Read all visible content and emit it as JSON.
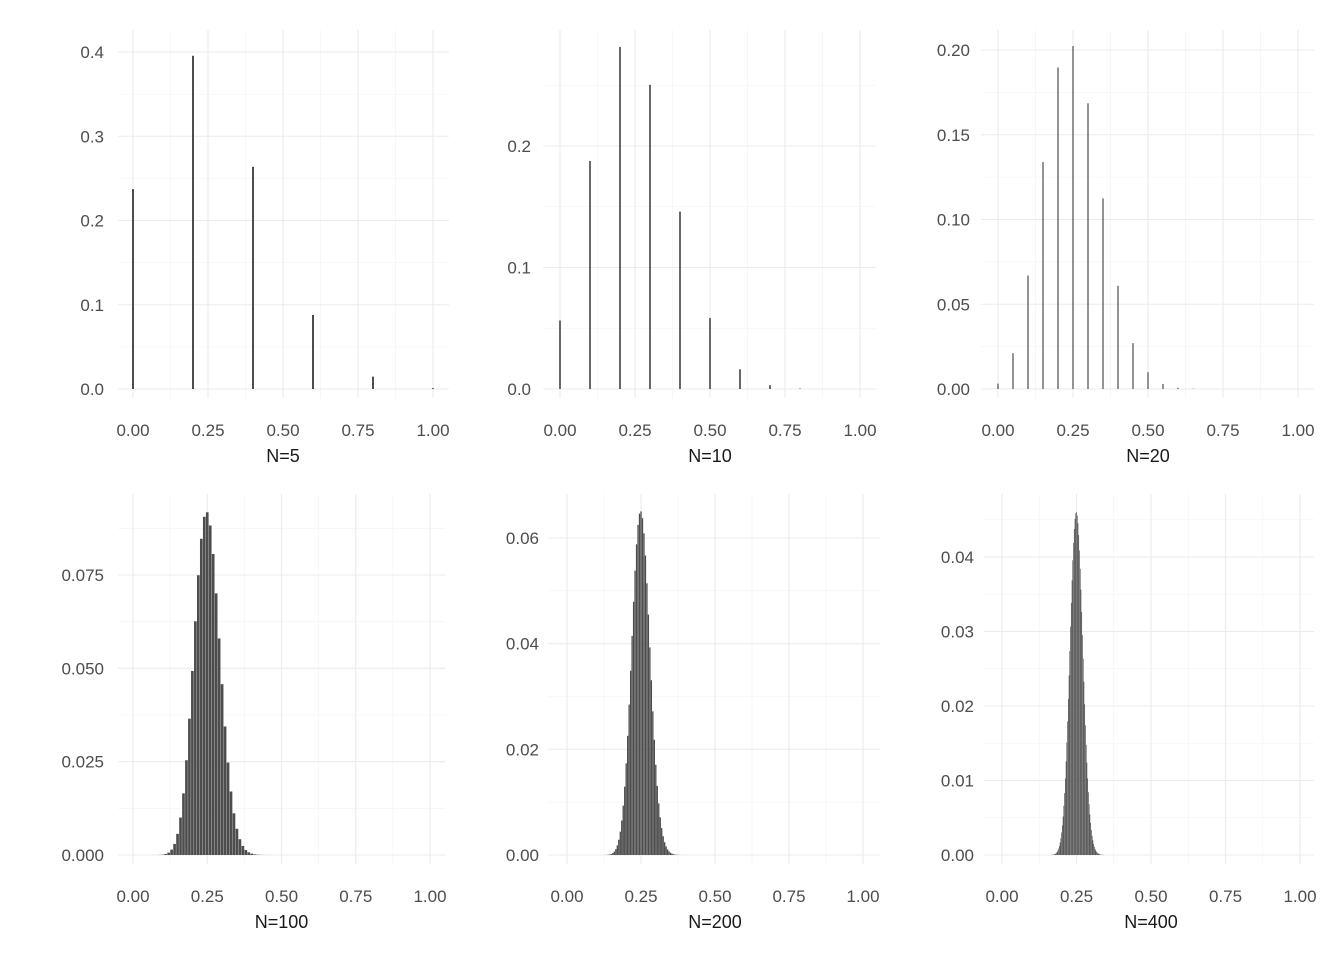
{
  "chart_data": [
    {
      "type": "bar",
      "xlabel": "N=5",
      "n": 5,
      "p": 0.25,
      "xlim": [
        0,
        1
      ],
      "ylim": [
        0,
        0.4
      ],
      "x_ticks": [
        "0.00",
        "0.25",
        "0.50",
        "0.75",
        "1.00"
      ],
      "y_ticks": [
        "0.0",
        "0.1",
        "0.2",
        "0.3",
        "0.4"
      ],
      "y_tick_values": [
        0,
        0.1,
        0.2,
        0.3,
        0.4
      ]
    },
    {
      "type": "bar",
      "xlabel": "N=10",
      "n": 10,
      "p": 0.25,
      "xlim": [
        0,
        1
      ],
      "ylim": [
        0,
        0.28
      ],
      "x_ticks": [
        "0.00",
        "0.25",
        "0.50",
        "0.75",
        "1.00"
      ],
      "y_ticks": [
        "0.0",
        "0.1",
        "0.2"
      ],
      "y_tick_values": [
        0,
        0.1,
        0.2
      ]
    },
    {
      "type": "bar",
      "xlabel": "N=20",
      "n": 20,
      "p": 0.25,
      "xlim": [
        0,
        1
      ],
      "ylim": [
        0,
        0.2
      ],
      "x_ticks": [
        "0.00",
        "0.25",
        "0.50",
        "0.75",
        "1.00"
      ],
      "y_ticks": [
        "0.00",
        "0.05",
        "0.10",
        "0.15",
        "0.20"
      ],
      "y_tick_values": [
        0,
        0.05,
        0.1,
        0.15,
        0.2
      ]
    },
    {
      "type": "bar",
      "xlabel": "N=100",
      "n": 100,
      "p": 0.25,
      "xlim": [
        0,
        1
      ],
      "ylim": [
        0,
        0.092
      ],
      "x_ticks": [
        "0.00",
        "0.25",
        "0.50",
        "0.75",
        "1.00"
      ],
      "y_ticks": [
        "0.000",
        "0.025",
        "0.050",
        "0.075"
      ],
      "y_tick_values": [
        0,
        0.025,
        0.05,
        0.075
      ]
    },
    {
      "type": "bar",
      "xlabel": "N=200",
      "n": 200,
      "p": 0.25,
      "xlim": [
        0,
        1
      ],
      "ylim": [
        0,
        0.065
      ],
      "x_ticks": [
        "0.00",
        "0.25",
        "0.50",
        "0.75",
        "1.00"
      ],
      "y_ticks": [
        "0.00",
        "0.02",
        "0.04",
        "0.06"
      ],
      "y_tick_values": [
        0,
        0.02,
        0.04,
        0.06
      ]
    },
    {
      "type": "bar",
      "xlabel": "N=400",
      "n": 400,
      "p": 0.25,
      "xlim": [
        0,
        1
      ],
      "ylim": [
        0,
        0.046
      ],
      "x_ticks": [
        "0.00",
        "0.25",
        "0.50",
        "0.75",
        "1.00"
      ],
      "y_ticks": [
        "0.00",
        "0.01",
        "0.02",
        "0.03",
        "0.04"
      ],
      "y_tick_values": [
        0,
        0.01,
        0.02,
        0.03,
        0.04
      ]
    }
  ],
  "colors": {
    "bar": "#4d4d4d",
    "grid": "#ebebeb",
    "tick_text": "#4d4d4d",
    "label": "#1a1a1a"
  }
}
